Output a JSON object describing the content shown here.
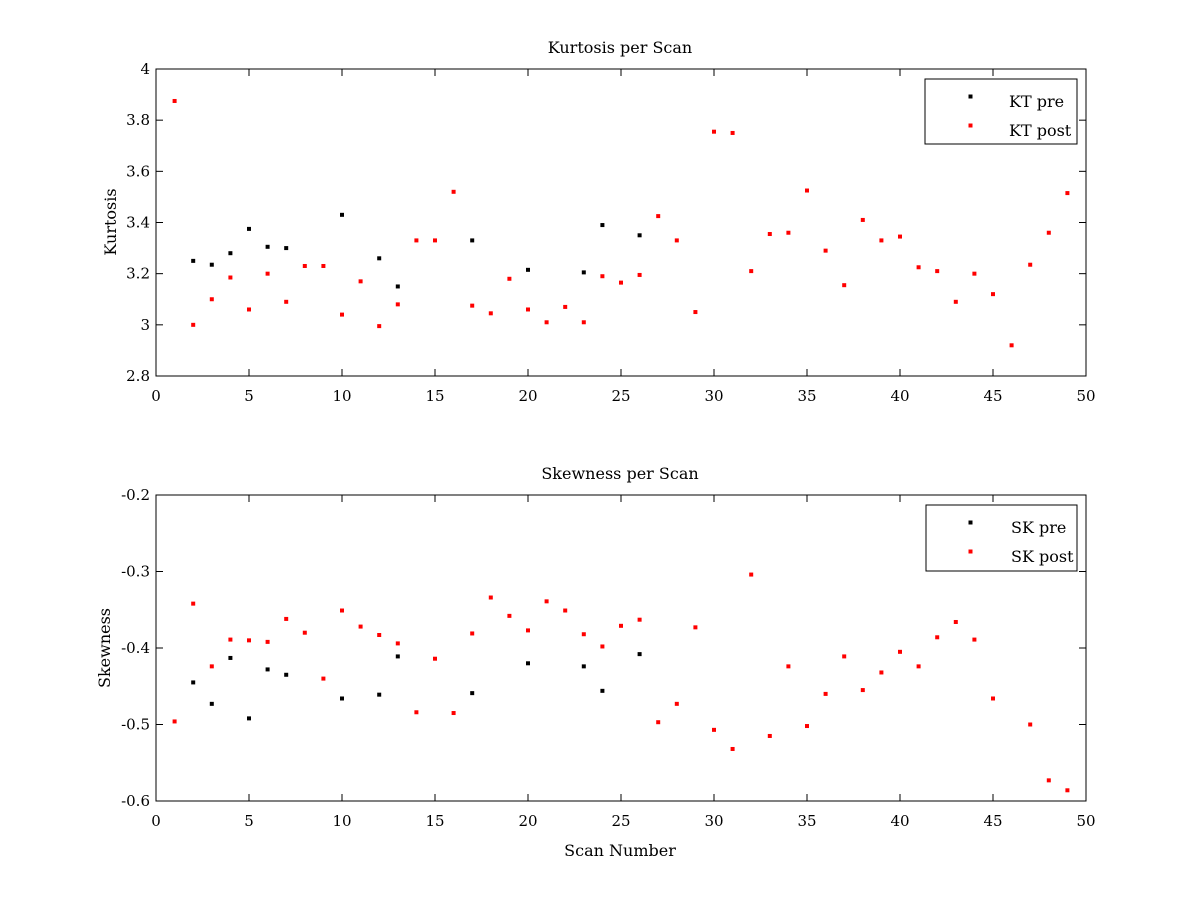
{
  "chart_data": [
    {
      "type": "scatter",
      "title": "Kurtosis per Scan",
      "xlabel": "",
      "ylabel": "Kurtosis",
      "xlim": [
        0,
        50
      ],
      "ylim": [
        2.8,
        4
      ],
      "xticks": [
        "0",
        "5",
        "10",
        "15",
        "20",
        "25",
        "30",
        "35",
        "40",
        "45",
        "50"
      ],
      "yticks": [
        "2.8",
        "3",
        "3.2",
        "3.4",
        "3.6",
        "3.8",
        "4"
      ],
      "grid": false,
      "legend": "top-right",
      "series": [
        {
          "name": "KT pre",
          "color": "#000000",
          "x": [
            2,
            3,
            4,
            5,
            6,
            7,
            10,
            12,
            13,
            17,
            20,
            23,
            24,
            26
          ],
          "y": [
            3.25,
            3.235,
            3.28,
            3.375,
            3.305,
            3.3,
            3.43,
            3.26,
            3.15,
            3.33,
            3.215,
            3.205,
            3.39,
            3.35
          ]
        },
        {
          "name": "KT post",
          "color": "#ff0000",
          "x": [
            1,
            2,
            3,
            4,
            5,
            6,
            7,
            8,
            9,
            10,
            11,
            12,
            13,
            14,
            15,
            16,
            17,
            18,
            19,
            20,
            21,
            22,
            23,
            24,
            25,
            26,
            27,
            28,
            29,
            30,
            31,
            32,
            33,
            34,
            35,
            36,
            37,
            38,
            39,
            40,
            41,
            42,
            43,
            44,
            45,
            46,
            47,
            48,
            49
          ],
          "y": [
            3.875,
            3.0,
            3.1,
            3.185,
            3.06,
            3.2,
            3.09,
            3.23,
            3.23,
            3.04,
            3.17,
            2.995,
            3.08,
            3.33,
            3.33,
            3.52,
            3.075,
            3.045,
            3.18,
            3.06,
            3.01,
            3.07,
            3.01,
            3.19,
            3.165,
            3.195,
            3.425,
            3.33,
            3.05,
            3.755,
            3.75,
            3.21,
            3.355,
            3.36,
            3.525,
            3.29,
            3.155,
            3.41,
            3.33,
            3.345,
            3.225,
            3.21,
            3.09,
            3.2,
            3.12,
            2.92,
            3.235,
            3.36,
            3.515
          ]
        }
      ]
    },
    {
      "type": "scatter",
      "title": "Skewness per Scan",
      "xlabel": "Scan Number",
      "ylabel": "Skewness",
      "xlim": [
        0,
        50
      ],
      "ylim": [
        -0.6,
        -0.2
      ],
      "xticks": [
        "0",
        "5",
        "10",
        "15",
        "20",
        "25",
        "30",
        "35",
        "40",
        "45",
        "50"
      ],
      "yticks": [
        "-0.6",
        "-0.5",
        "-0.4",
        "-0.3",
        "-0.2"
      ],
      "grid": false,
      "legend": "top-right",
      "series": [
        {
          "name": "SK pre",
          "color": "#000000",
          "x": [
            2,
            3,
            4,
            5,
            6,
            7,
            10,
            12,
            13,
            17,
            20,
            23,
            24,
            26
          ],
          "y": [
            -0.445,
            -0.473,
            -0.413,
            -0.492,
            -0.428,
            -0.435,
            -0.466,
            -0.461,
            -0.411,
            -0.459,
            -0.42,
            -0.424,
            -0.456,
            -0.408
          ]
        },
        {
          "name": "SK post",
          "color": "#ff0000",
          "x": [
            1,
            2,
            3,
            4,
            5,
            6,
            7,
            8,
            9,
            10,
            11,
            12,
            13,
            14,
            15,
            16,
            17,
            18,
            19,
            20,
            21,
            22,
            23,
            24,
            25,
            26,
            27,
            28,
            29,
            30,
            31,
            32,
            33,
            34,
            35,
            36,
            37,
            38,
            39,
            40,
            41,
            42,
            43,
            44,
            45,
            47,
            48,
            49
          ],
          "y": [
            -0.496,
            -0.342,
            -0.424,
            -0.389,
            -0.39,
            -0.392,
            -0.362,
            -0.38,
            -0.44,
            -0.351,
            -0.372,
            -0.383,
            -0.394,
            -0.484,
            -0.414,
            -0.485,
            -0.381,
            -0.334,
            -0.358,
            -0.377,
            -0.339,
            -0.351,
            -0.382,
            -0.398,
            -0.371,
            -0.363,
            -0.497,
            -0.473,
            -0.373,
            -0.507,
            -0.532,
            -0.304,
            -0.515,
            -0.424,
            -0.502,
            -0.46,
            -0.411,
            -0.455,
            -0.432,
            -0.405,
            -0.424,
            -0.386,
            -0.366,
            -0.389,
            -0.466,
            -0.5,
            -0.573,
            -0.586
          ]
        }
      ]
    }
  ]
}
